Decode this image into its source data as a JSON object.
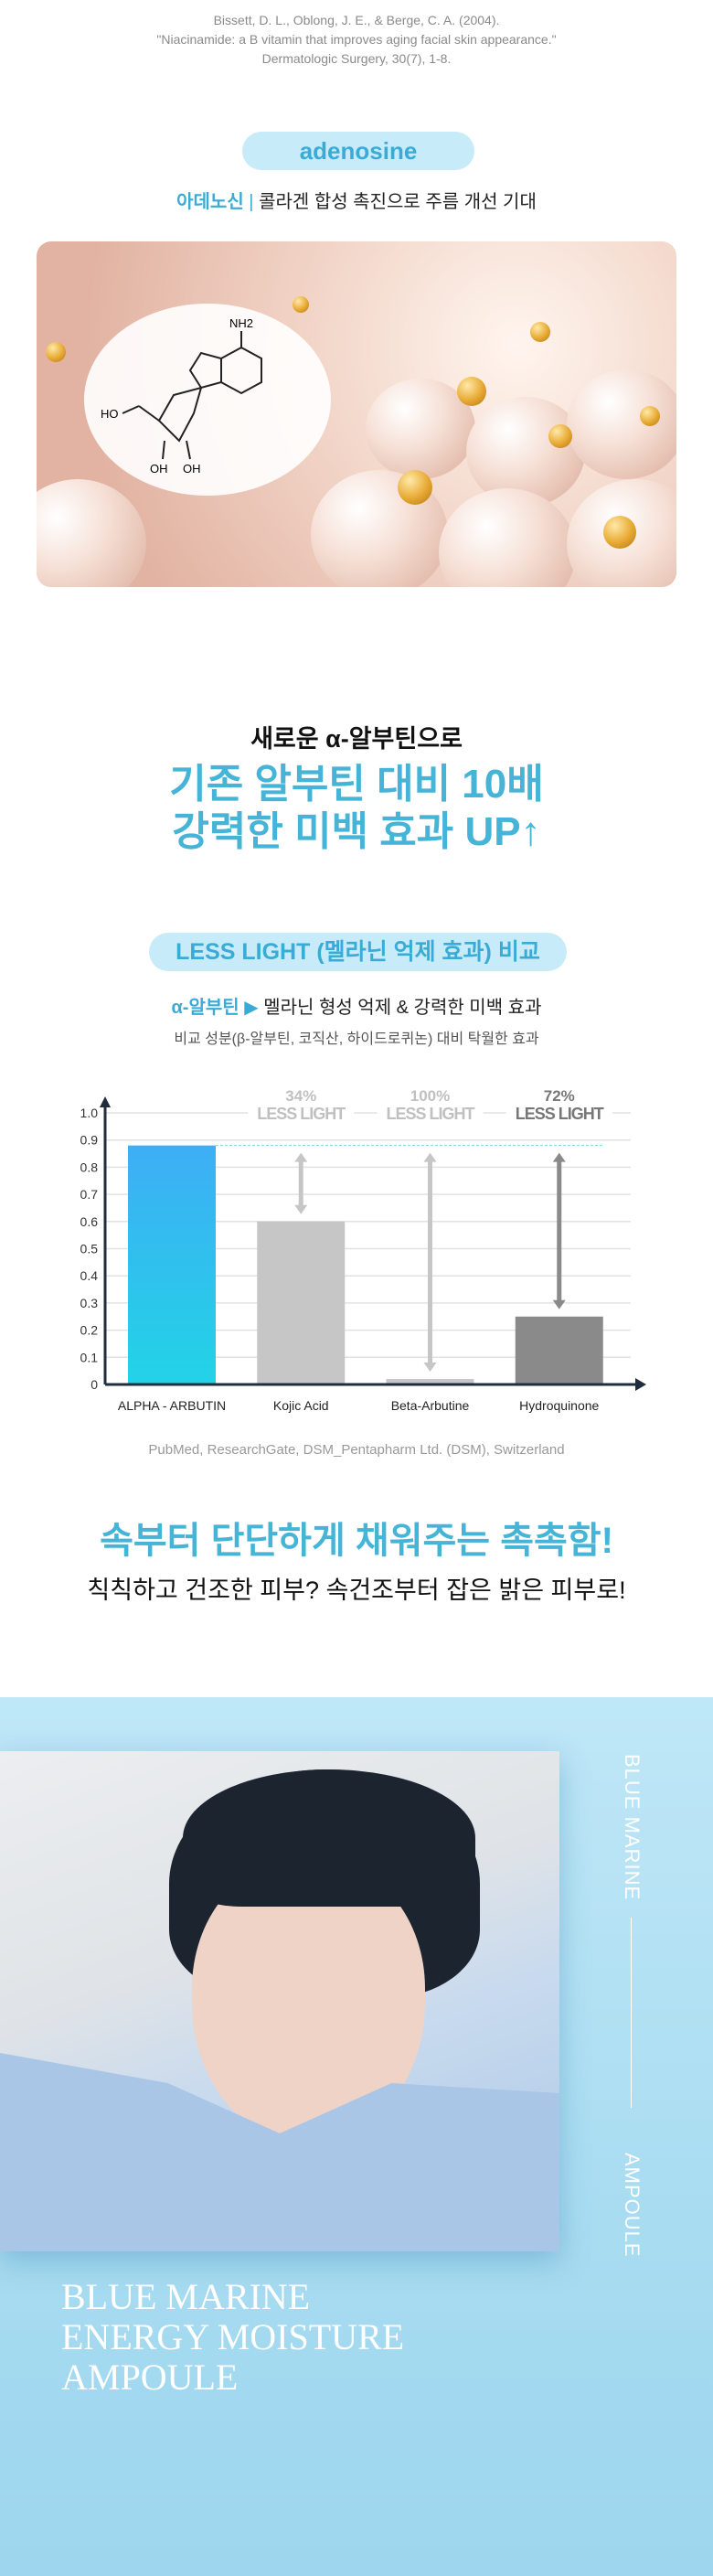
{
  "citation": {
    "line1": "Bissett, D. L., Oblong, J. E., & Berge, C. A. (2004).",
    "line2": "\"Niacinamide: a B vitamin that improves aging facial skin appearance.\"",
    "line3": "Dermatologic Surgery, 30(7), 1-8."
  },
  "adenosine": {
    "pill": "adenosine",
    "name_ko": "아데노신",
    "separator": "|",
    "desc": "콜라겐 합성 촉진으로 주름 개선 기대",
    "molecule_labels": {
      "nh2": "NH2",
      "ho": "HO",
      "oh1": "OH",
      "oh2": "OH"
    }
  },
  "arbutin": {
    "lead": "새로운 α-알부틴으로",
    "headline1": "기존 알부틴 대비 10배",
    "headline2": "강력한 미백 효과 UP↑",
    "pill": "LESS LIGHT (멜라닌 억제 효과) 비교",
    "name": "α-알부틴",
    "arrow": "▶",
    "desc": "멜라닌 형성 억제 & 강력한 미백 효과",
    "desc2": "비교 성분(β-알부틴, 코직산, 하이드로퀴논) 대비 탁월한 효과"
  },
  "chart_data": {
    "type": "bar",
    "categories": [
      "ALPHA - ARBUTIN",
      "Kojic Acid",
      "Beta-Arbutine",
      "Hydroquinone"
    ],
    "values": [
      0.88,
      0.6,
      0.02,
      0.25
    ],
    "ylim": [
      0,
      1.0
    ],
    "yticks": [
      "0",
      "0.1",
      "0.2",
      "0.3",
      "0.4",
      "0.5",
      "0.6",
      "0.7",
      "0.8",
      "0.9",
      "1.0"
    ],
    "annotations": [
      {
        "pct": "34%",
        "label": "LESS LIGHT"
      },
      {
        "pct": "100%",
        "label": "LESS LIGHT"
      },
      {
        "pct": "72%",
        "label": "LESS LIGHT"
      }
    ],
    "colors": [
      "#2bc8e8",
      "#c6c6c6",
      "#c6c6c6",
      "#8a8a8a"
    ],
    "grid": true
  },
  "source": "PubMed, ResearchGate, DSM_Pentapharm Ltd. (DSM), Switzerland",
  "moisture": {
    "headline": "속부터 단단하게 채워주는 촉촉함!",
    "sub": "칙칙하고 건조한 피부? 속건조부터 잡은 밝은 피부로!"
  },
  "product": {
    "vert1": "BLUE MARINE",
    "vert2": "AMPOULE",
    "title1": "BLUE MARINE",
    "title2": "ENERGY MOISTURE",
    "title3": "AMPOULE"
  }
}
